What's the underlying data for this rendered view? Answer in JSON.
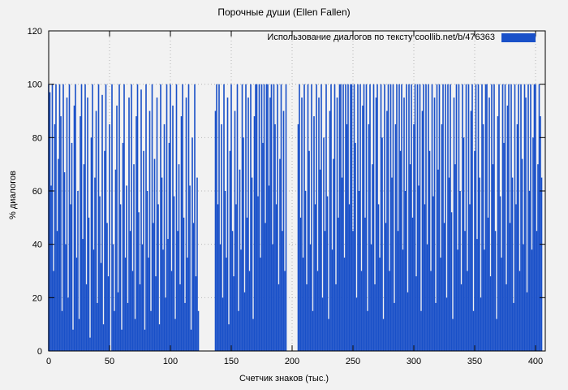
{
  "title": "Порочные души (Ellen Fallen)",
  "legend": {
    "label": "Использование диалогов по тексту  coollib.net/b/476363",
    "swatch_color": "#1950c8"
  },
  "chart_data": {
    "type": "bar",
    "title": "Порочные души (Ellen Fallen)",
    "xlabel": "Счетчик знаков (тыс.)",
    "ylabel": "% диалогов",
    "xlim": [
      0,
      408
    ],
    "ylim": [
      0,
      120
    ],
    "x_ticks": [
      0,
      50,
      100,
      150,
      200,
      250,
      300,
      350,
      400
    ],
    "y_ticks": [
      0,
      20,
      40,
      60,
      80,
      100,
      120
    ],
    "grid": true,
    "legend_position": "top-right",
    "series": [
      {
        "name": "Использование диалогов по тексту  coollib.net/b/476363",
        "color": "#1950c8",
        "x_start": 0,
        "x_step": 1,
        "values": [
          100,
          97,
          62,
          100,
          30,
          85,
          100,
          45,
          72,
          100,
          88,
          15,
          100,
          67,
          40,
          95,
          20,
          100,
          55,
          78,
          8,
          92,
          100,
          35,
          60,
          12,
          88,
          100,
          42,
          70,
          100,
          25,
          95,
          50,
          5,
          80,
          100,
          38,
          65,
          90,
          18,
          100,
          58,
          33,
          96,
          10,
          75,
          100,
          48,
          28,
          85,
          0,
          100,
          40,
          15,
          68,
          92,
          22,
          100,
          55,
          8,
          78,
          100,
          35,
          62,
          18,
          95,
          45,
          100,
          30,
          70,
          12,
          88,
          100,
          52,
          25,
          98,
          40,
          75,
          8,
          100,
          60,
          35,
          90,
          15,
          100,
          48,
          72,
          28,
          95,
          55,
          10,
          100,
          65,
          38,
          85,
          20,
          100,
          42,
          78,
          100,
          30,
          92,
          58,
          12,
          100,
          45,
          70,
          25,
          88,
          100,
          50,
          18,
          95,
          35,
          100,
          62,
          8,
          80,
          48,
          100,
          28,
          65,
          15,
          0,
          0,
          0,
          0,
          0,
          0,
          0,
          0,
          0,
          0,
          0,
          0,
          0,
          90,
          100,
          55,
          100,
          40,
          85,
          20,
          100,
          60,
          35,
          95,
          10,
          75,
          100,
          45,
          28,
          90,
          55,
          100,
          15,
          68,
          38,
          100,
          80,
          22,
          100,
          50,
          95,
          30,
          100,
          65,
          12,
          88,
          100,
          100,
          58,
          100,
          35,
          100,
          78,
          100,
          48,
          100,
          100,
          62,
          95,
          100,
          40,
          100,
          85,
          55,
          100,
          25,
          72,
          100,
          45,
          90,
          30,
          100,
          0,
          0,
          0,
          0,
          0,
          0,
          0,
          0,
          0,
          85,
          100,
          50,
          95,
          35,
          100,
          60,
          25,
          100,
          75,
          40,
          100,
          15,
          88,
          55,
          100,
          30,
          95,
          68,
          100,
          20,
          80,
          45,
          100,
          58,
          12,
          90,
          100,
          38,
          72,
          100,
          25,
          95,
          50,
          100,
          100,
          65,
          100,
          35,
          100,
          85,
          100,
          55,
          100,
          100,
          45,
          100,
          78,
          20,
          100,
          60,
          100,
          30,
          92,
          100,
          50,
          100,
          15,
          85,
          100,
          40,
          70,
          100,
          25,
          95,
          100,
          55,
          35,
          100,
          80,
          12,
          100,
          48,
          90,
          100,
          30,
          100,
          65,
          100,
          18,
          85,
          100,
          45,
          100,
          75,
          100,
          38,
          95,
          60,
          100,
          22,
          100,
          70,
          100,
          50,
          85,
          100,
          28,
          100,
          62,
          100,
          15,
          90,
          100,
          55,
          100,
          40,
          100,
          75,
          30,
          100,
          58,
          95,
          18,
          100,
          68,
          100,
          35,
          85,
          100,
          48,
          100,
          20,
          100,
          65,
          100,
          52,
          12,
          95,
          70,
          100,
          38,
          100,
          60,
          25,
          100,
          80,
          45,
          100,
          30,
          100,
          55,
          90,
          100,
          15,
          75,
          100,
          42,
          100,
          65,
          20,
          100,
          85,
          38,
          100,
          100,
          50,
          95,
          28,
          100,
          70,
          100,
          45,
          12,
          88,
          100,
          58,
          35,
          100,
          78,
          100,
          25,
          92,
          100,
          48,
          100,
          65,
          18,
          100,
          55,
          85,
          100,
          30,
          100,
          72,
          40,
          100,
          95,
          22,
          100,
          60,
          100,
          38,
          80,
          100,
          100,
          45,
          70,
          100,
          88,
          65
        ]
      }
    ]
  }
}
